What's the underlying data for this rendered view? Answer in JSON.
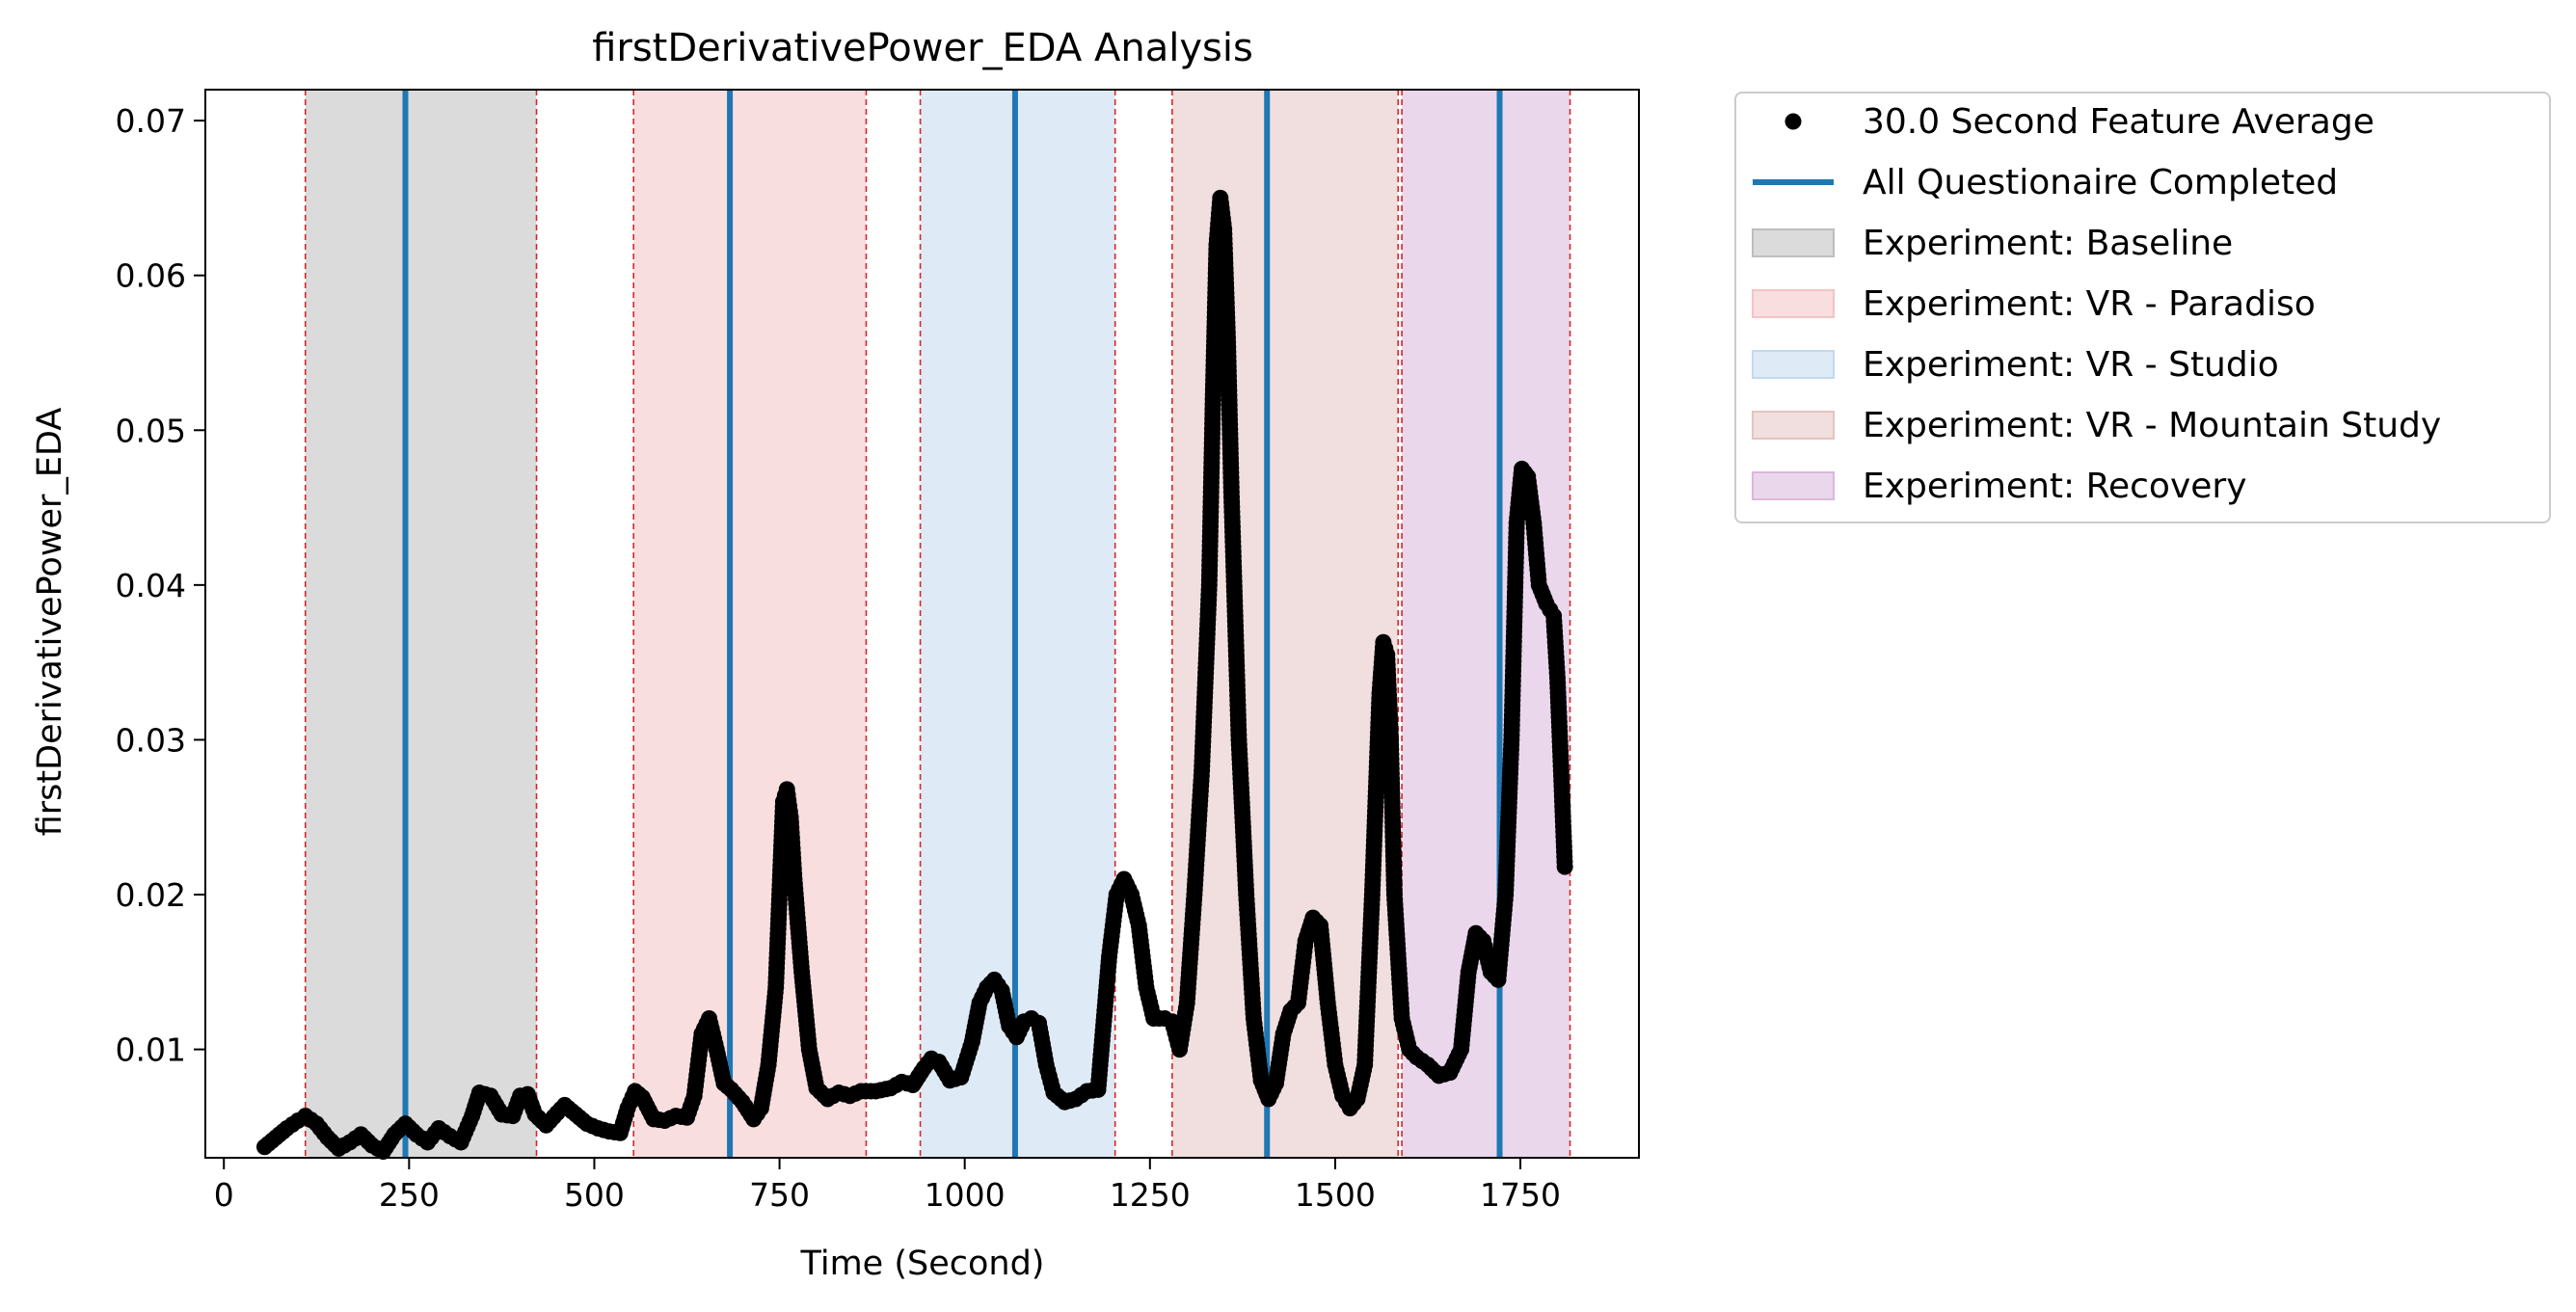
{
  "chart_data": {
    "type": "scatter",
    "title": "firstDerivativePower_EDA Analysis",
    "xlabel": "Time (Second)",
    "ylabel": "firstDerivativePower_EDA",
    "xlim": [
      -25,
      1910
    ],
    "ylim": [
      0.003,
      0.072
    ],
    "xticks": [
      0,
      250,
      500,
      750,
      1000,
      1250,
      1500,
      1750
    ],
    "xtick_labels": [
      "0",
      "250",
      "500",
      "750",
      "1000",
      "1250",
      "1500",
      "1750"
    ],
    "yticks": [
      0.01,
      0.02,
      0.03,
      0.04,
      0.05,
      0.06,
      0.07
    ],
    "ytick_labels": [
      "0.01",
      "0.02",
      "0.03",
      "0.04",
      "0.05",
      "0.06",
      "0.07"
    ],
    "grid": false,
    "legend_position": "outside-upper-right",
    "legend": [
      {
        "label": "30.0 Second Feature Average",
        "kind": "marker",
        "color": "#000000"
      },
      {
        "label": "All Questionaire Completed",
        "kind": "line",
        "color": "#1f77b4"
      },
      {
        "label": "Experiment: Baseline",
        "kind": "patch",
        "color": "#bdbdbd"
      },
      {
        "label": "Experiment: VR - Paradiso",
        "kind": "patch",
        "color": "#f4c2c6"
      },
      {
        "label": "Experiment: VR - Studio",
        "kind": "patch",
        "color": "#c3d9ec"
      },
      {
        "label": "Experiment: VR - Mountain Study",
        "kind": "patch",
        "color": "#e6c3c3"
      },
      {
        "label": "Experiment: Recovery",
        "kind": "patch",
        "color": "#dbb7dd"
      }
    ],
    "spans": [
      {
        "name": "Experiment: Baseline",
        "start": 110,
        "end": 422,
        "color": "#bdbdbd"
      },
      {
        "name": "Experiment: VR - Paradiso",
        "start": 553,
        "end": 867,
        "color": "#f4c2c6"
      },
      {
        "name": "Experiment: VR - Studio",
        "start": 940,
        "end": 1203,
        "color": "#c3d9ec"
      },
      {
        "name": "Experiment: VR - Mountain Study",
        "start": 1280,
        "end": 1585,
        "color": "#e6c3c3"
      },
      {
        "name": "Experiment: Recovery",
        "start": 1590,
        "end": 1817,
        "color": "#dbb7dd"
      }
    ],
    "span_edge_color": "#d62728",
    "questionnaire_lines": {
      "color": "#1f77b4",
      "x": [
        245,
        683,
        1068,
        1408,
        1722
      ]
    },
    "series": [
      {
        "name": "30.0 Second Feature Average",
        "color": "#000000",
        "points": [
          [
            55,
            0.0037
          ],
          [
            70,
            0.0043
          ],
          [
            85,
            0.0049
          ],
          [
            100,
            0.0054
          ],
          [
            110,
            0.0057
          ],
          [
            125,
            0.0052
          ],
          [
            140,
            0.0043
          ],
          [
            155,
            0.0036
          ],
          [
            170,
            0.004
          ],
          [
            185,
            0.0045
          ],
          [
            200,
            0.0038
          ],
          [
            215,
            0.0034
          ],
          [
            230,
            0.0045
          ],
          [
            245,
            0.0052
          ],
          [
            260,
            0.0045
          ],
          [
            275,
            0.004
          ],
          [
            290,
            0.0049
          ],
          [
            305,
            0.0044
          ],
          [
            320,
            0.004
          ],
          [
            335,
            0.0057
          ],
          [
            345,
            0.0072
          ],
          [
            360,
            0.007
          ],
          [
            375,
            0.0058
          ],
          [
            390,
            0.0057
          ],
          [
            400,
            0.007
          ],
          [
            410,
            0.0071
          ],
          [
            420,
            0.0058
          ],
          [
            435,
            0.0051
          ],
          [
            450,
            0.0059
          ],
          [
            460,
            0.0064
          ],
          [
            475,
            0.0058
          ],
          [
            490,
            0.0052
          ],
          [
            505,
            0.0049
          ],
          [
            520,
            0.0047
          ],
          [
            535,
            0.0046
          ],
          [
            545,
            0.0062
          ],
          [
            555,
            0.0073
          ],
          [
            565,
            0.0069
          ],
          [
            580,
            0.0055
          ],
          [
            595,
            0.0054
          ],
          [
            610,
            0.0057
          ],
          [
            625,
            0.0056
          ],
          [
            635,
            0.007
          ],
          [
            645,
            0.011
          ],
          [
            655,
            0.012
          ],
          [
            665,
            0.01
          ],
          [
            675,
            0.0078
          ],
          [
            685,
            0.0074
          ],
          [
            700,
            0.0066
          ],
          [
            715,
            0.0055
          ],
          [
            725,
            0.0062
          ],
          [
            735,
            0.009
          ],
          [
            745,
            0.014
          ],
          [
            750,
            0.02
          ],
          [
            755,
            0.026
          ],
          [
            760,
            0.0268
          ],
          [
            765,
            0.025
          ],
          [
            770,
            0.021
          ],
          [
            780,
            0.015
          ],
          [
            790,
            0.01
          ],
          [
            800,
            0.0075
          ],
          [
            815,
            0.0068
          ],
          [
            830,
            0.0072
          ],
          [
            845,
            0.007
          ],
          [
            860,
            0.0073
          ],
          [
            880,
            0.0073
          ],
          [
            900,
            0.0075
          ],
          [
            915,
            0.0079
          ],
          [
            930,
            0.0077
          ],
          [
            945,
            0.0088
          ],
          [
            955,
            0.0094
          ],
          [
            965,
            0.0092
          ],
          [
            980,
            0.008
          ],
          [
            995,
            0.0082
          ],
          [
            1010,
            0.0105
          ],
          [
            1020,
            0.013
          ],
          [
            1030,
            0.014
          ],
          [
            1040,
            0.0145
          ],
          [
            1050,
            0.0138
          ],
          [
            1060,
            0.0115
          ],
          [
            1070,
            0.0108
          ],
          [
            1080,
            0.0118
          ],
          [
            1090,
            0.012
          ],
          [
            1100,
            0.0117
          ],
          [
            1110,
            0.009
          ],
          [
            1120,
            0.0072
          ],
          [
            1135,
            0.0066
          ],
          [
            1150,
            0.0068
          ],
          [
            1165,
            0.0073
          ],
          [
            1180,
            0.0074
          ],
          [
            1195,
            0.016
          ],
          [
            1205,
            0.02
          ],
          [
            1215,
            0.021
          ],
          [
            1225,
            0.02
          ],
          [
            1235,
            0.018
          ],
          [
            1245,
            0.014
          ],
          [
            1255,
            0.012
          ],
          [
            1270,
            0.012
          ],
          [
            1280,
            0.0118
          ],
          [
            1290,
            0.01
          ],
          [
            1300,
            0.013
          ],
          [
            1310,
            0.02
          ],
          [
            1320,
            0.028
          ],
          [
            1330,
            0.04
          ],
          [
            1335,
            0.052
          ],
          [
            1340,
            0.062
          ],
          [
            1345,
            0.065
          ],
          [
            1350,
            0.063
          ],
          [
            1355,
            0.056
          ],
          [
            1360,
            0.046
          ],
          [
            1365,
            0.038
          ],
          [
            1370,
            0.03
          ],
          [
            1380,
            0.02
          ],
          [
            1390,
            0.012
          ],
          [
            1400,
            0.008
          ],
          [
            1410,
            0.0068
          ],
          [
            1420,
            0.0078
          ],
          [
            1430,
            0.011
          ],
          [
            1440,
            0.0125
          ],
          [
            1450,
            0.013
          ],
          [
            1460,
            0.017
          ],
          [
            1470,
            0.0185
          ],
          [
            1480,
            0.018
          ],
          [
            1490,
            0.013
          ],
          [
            1500,
            0.009
          ],
          [
            1510,
            0.007
          ],
          [
            1520,
            0.0062
          ],
          [
            1530,
            0.0068
          ],
          [
            1540,
            0.009
          ],
          [
            1550,
            0.02
          ],
          [
            1560,
            0.033
          ],
          [
            1565,
            0.0363
          ],
          [
            1570,
            0.0355
          ],
          [
            1575,
            0.03
          ],
          [
            1580,
            0.02
          ],
          [
            1590,
            0.012
          ],
          [
            1600,
            0.01
          ],
          [
            1610,
            0.0095
          ],
          [
            1625,
            0.009
          ],
          [
            1640,
            0.0083
          ],
          [
            1655,
            0.0085
          ],
          [
            1670,
            0.01
          ],
          [
            1680,
            0.015
          ],
          [
            1690,
            0.0175
          ],
          [
            1700,
            0.017
          ],
          [
            1710,
            0.015
          ],
          [
            1720,
            0.0145
          ],
          [
            1730,
            0.02
          ],
          [
            1738,
            0.03
          ],
          [
            1745,
            0.044
          ],
          [
            1752,
            0.0475
          ],
          [
            1760,
            0.047
          ],
          [
            1768,
            0.044
          ],
          [
            1775,
            0.04
          ],
          [
            1785,
            0.0388
          ],
          [
            1795,
            0.038
          ],
          [
            1800,
            0.034
          ],
          [
            1805,
            0.028
          ],
          [
            1810,
            0.0218
          ]
        ]
      }
    ]
  }
}
